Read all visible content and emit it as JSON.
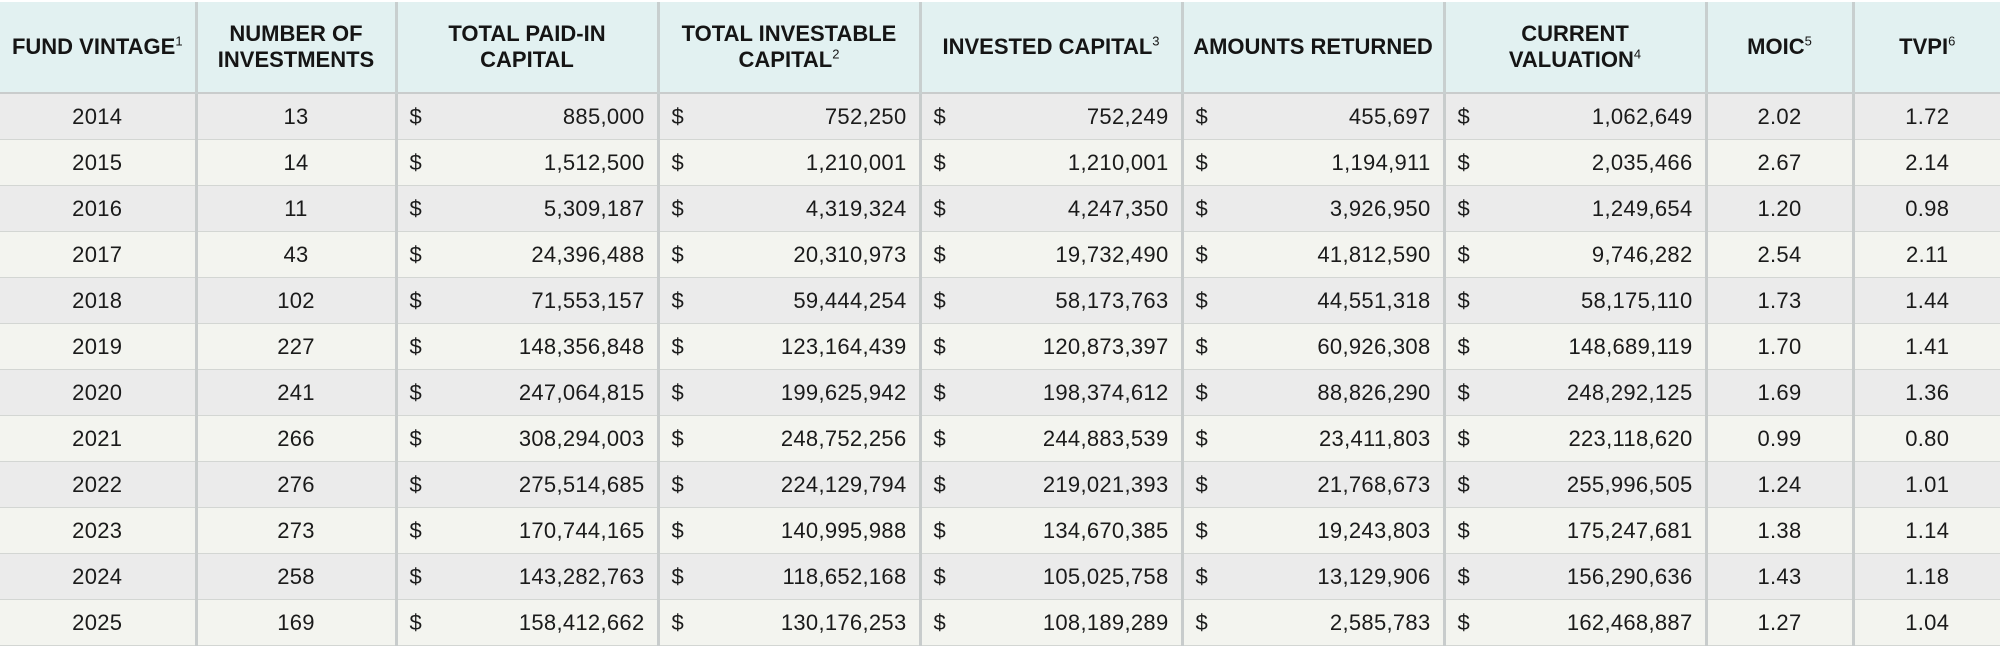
{
  "headers": {
    "vintage": {
      "text": "FUND VINTAGE",
      "note": "1"
    },
    "num": {
      "text": "NUMBER OF INVESTMENTS",
      "note": ""
    },
    "paid_in": {
      "text": "TOTAL PAID-IN CAPITAL",
      "note": ""
    },
    "investable": {
      "text": "TOTAL INVESTABLE CAPITAL",
      "note": "2"
    },
    "invested": {
      "text": "INVESTED CAPITAL",
      "note": "3"
    },
    "returned": {
      "text": "AMOUNTS RETURNED",
      "note": ""
    },
    "valuation": {
      "text": "CURRENT VALUATION",
      "note": "4"
    },
    "moic": {
      "text": "MOIC",
      "note": "5"
    },
    "tvpi": {
      "text": "TVPI",
      "note": "6"
    }
  },
  "currency_symbol": "$",
  "rows": [
    {
      "vintage": "2014",
      "num": "13",
      "paid_in": "885,000",
      "investable": "752,250",
      "invested": "752,249",
      "returned": "455,697",
      "valuation": "1,062,649",
      "moic": "2.02",
      "tvpi": "1.72"
    },
    {
      "vintage": "2015",
      "num": "14",
      "paid_in": "1,512,500",
      "investable": "1,210,001",
      "invested": "1,210,001",
      "returned": "1,194,911",
      "valuation": "2,035,466",
      "moic": "2.67",
      "tvpi": "2.14"
    },
    {
      "vintage": "2016",
      "num": "11",
      "paid_in": "5,309,187",
      "investable": "4,319,324",
      "invested": "4,247,350",
      "returned": "3,926,950",
      "valuation": "1,249,654",
      "moic": "1.20",
      "tvpi": "0.98"
    },
    {
      "vintage": "2017",
      "num": "43",
      "paid_in": "24,396,488",
      "investable": "20,310,973",
      "invested": "19,732,490",
      "returned": "41,812,590",
      "valuation": "9,746,282",
      "moic": "2.54",
      "tvpi": "2.11"
    },
    {
      "vintage": "2018",
      "num": "102",
      "paid_in": "71,553,157",
      "investable": "59,444,254",
      "invested": "58,173,763",
      "returned": "44,551,318",
      "valuation": "58,175,110",
      "moic": "1.73",
      "tvpi": "1.44"
    },
    {
      "vintage": "2019",
      "num": "227",
      "paid_in": "148,356,848",
      "investable": "123,164,439",
      "invested": "120,873,397",
      "returned": "60,926,308",
      "valuation": "148,689,119",
      "moic": "1.70",
      "tvpi": "1.41"
    },
    {
      "vintage": "2020",
      "num": "241",
      "paid_in": "247,064,815",
      "investable": "199,625,942",
      "invested": "198,374,612",
      "returned": "88,826,290",
      "valuation": "248,292,125",
      "moic": "1.69",
      "tvpi": "1.36"
    },
    {
      "vintage": "2021",
      "num": "266",
      "paid_in": "308,294,003",
      "investable": "248,752,256",
      "invested": "244,883,539",
      "returned": "23,411,803",
      "valuation": "223,118,620",
      "moic": "0.99",
      "tvpi": "0.80"
    },
    {
      "vintage": "2022",
      "num": "276",
      "paid_in": "275,514,685",
      "investable": "224,129,794",
      "invested": "219,021,393",
      "returned": "21,768,673",
      "valuation": "255,996,505",
      "moic": "1.24",
      "tvpi": "1.01"
    },
    {
      "vintage": "2023",
      "num": "273",
      "paid_in": "170,744,165",
      "investable": "140,995,988",
      "invested": "134,670,385",
      "returned": "19,243,803",
      "valuation": "175,247,681",
      "moic": "1.38",
      "tvpi": "1.14"
    },
    {
      "vintage": "2024",
      "num": "258",
      "paid_in": "143,282,763",
      "investable": "118,652,168",
      "invested": "105,025,758",
      "returned": "13,129,906",
      "valuation": "156,290,636",
      "moic": "1.43",
      "tvpi": "1.18"
    },
    {
      "vintage": "2025",
      "num": "169",
      "paid_in": "158,412,662",
      "investable": "130,176,253",
      "invested": "108,189,289",
      "returned": "2,585,783",
      "valuation": "162,468,887",
      "moic": "1.27",
      "tvpi": "1.04"
    }
  ]
}
